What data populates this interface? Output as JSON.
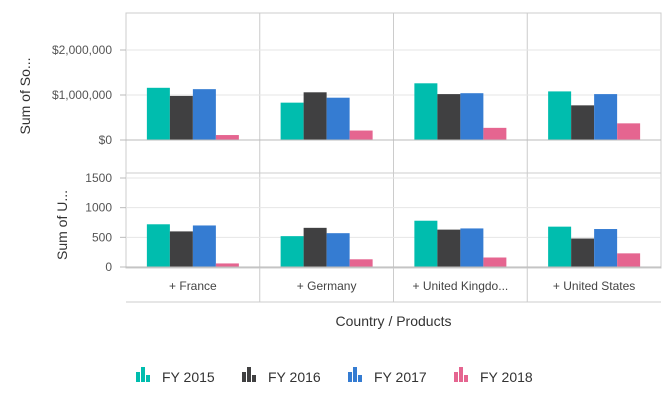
{
  "chart_data": {
    "type": "bar",
    "xlabel": "Country / Products",
    "categories": [
      "+ France",
      "+ Germany",
      "+ United Kingdo...",
      "+ United States"
    ],
    "legend_position": "bottom",
    "series_colors": [
      "#00bdae",
      "#404041",
      "#357cd2",
      "#e56590"
    ],
    "panels": [
      {
        "ylabel": "Sum of So...",
        "ylim": [
          0,
          2000000
        ],
        "ticks": [
          0,
          1000000,
          2000000
        ],
        "tick_labels": [
          "$0",
          "$1,000,000",
          "$2,000,000"
        ],
        "series": [
          {
            "name": "FY 2015",
            "values": [
              1160000,
              830000,
              1260000,
              1080000
            ]
          },
          {
            "name": "FY 2016",
            "values": [
              980000,
              1060000,
              1020000,
              770000
            ]
          },
          {
            "name": "FY 2017",
            "values": [
              1130000,
              940000,
              1040000,
              1020000
            ]
          },
          {
            "name": "FY 2018",
            "values": [
              110000,
              210000,
              270000,
              370000
            ]
          }
        ]
      },
      {
        "ylabel": "Sum of U...",
        "ylim": [
          0,
          1500
        ],
        "ticks": [
          0,
          500,
          1000,
          1500
        ],
        "tick_labels": [
          "0",
          "500",
          "1000",
          "1500"
        ],
        "series": [
          {
            "name": "FY 2015",
            "values": [
              720,
              520,
              780,
              680
            ]
          },
          {
            "name": "FY 2016",
            "values": [
              600,
              660,
              630,
              480
            ]
          },
          {
            "name": "FY 2017",
            "values": [
              700,
              570,
              650,
              640
            ]
          },
          {
            "name": "FY 2018",
            "values": [
              60,
              130,
              160,
              230
            ]
          }
        ]
      }
    ]
  }
}
